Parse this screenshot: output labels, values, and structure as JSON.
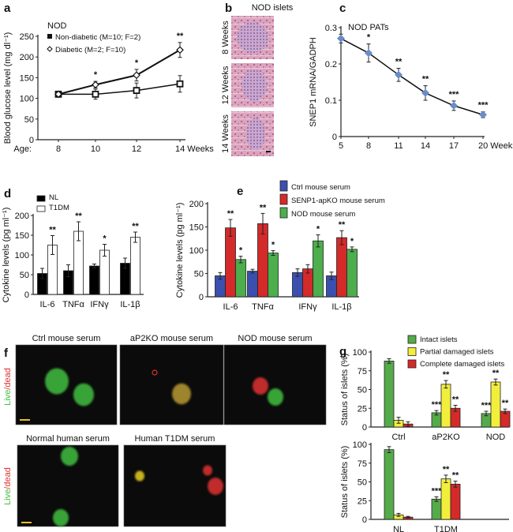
{
  "panel_labels": {
    "a": "a",
    "b": "b",
    "c": "c",
    "d": "d",
    "e": "e",
    "f": "f",
    "g": "g"
  },
  "panel_b": {
    "title": "NOD islets",
    "rows": [
      "8 Weeks",
      "12 Weeks",
      "14 Weeks"
    ]
  },
  "panel_f": {
    "titles": [
      "Ctrl mouse serum",
      "aP2KO mouse serum",
      "NOD mouse serum",
      "Normal human serum",
      "Human T1DM serum"
    ],
    "side_label_live": "Live",
    "side_label_sep": "/",
    "side_label_dead": "dead",
    "colors": {
      "live": "#3fbf3f",
      "dead": "#e03030",
      "scale_bar": "#e8c020"
    }
  },
  "chart_data": [
    {
      "id": "a",
      "type": "line",
      "legend_title": "NOD",
      "x_prefix": "Age:",
      "x": [
        8,
        10,
        12,
        14
      ],
      "tick_labels": [
        "8",
        "10",
        "12",
        "14 Weeks"
      ],
      "ylabel": "Blood glucose level (mg dl⁻¹)",
      "ylim": [
        0,
        250
      ],
      "yticks": [
        0,
        50,
        100,
        150,
        200,
        250
      ],
      "series": [
        {
          "name": "Non-diabetic (M=10; F=2)",
          "marker": "filled-square",
          "values": [
            110,
            110,
            119,
            135
          ],
          "errors": [
            0,
            12,
            18,
            20
          ]
        },
        {
          "name": "Diabetic (M=2; F=10)",
          "marker": "open-diamond",
          "values": [
            110,
            133,
            156,
            217
          ],
          "errors": [
            0,
            8,
            14,
            18
          ]
        }
      ],
      "significance": [
        "",
        "*",
        "*",
        "**"
      ]
    },
    {
      "id": "c",
      "type": "line",
      "annotation": "NOD PATs",
      "x": [
        5,
        8,
        11,
        14,
        17,
        20
      ],
      "tick_labels": [
        "5",
        "8",
        "11",
        "14",
        "17",
        "20 Weeks"
      ],
      "ylabel": "SNEP1 mRNA/GADPH",
      "ylim": [
        0,
        0.3
      ],
      "yticks": [
        0,
        0.1,
        0.2,
        0.3
      ],
      "ytick_labels": [
        "0",
        "0.1",
        "0.2",
        "0.3"
      ],
      "series": [
        {
          "marker": "blue-diamond",
          "color": "#6a8cc9",
          "values": [
            0.27,
            0.23,
            0.17,
            0.12,
            0.085,
            0.06
          ],
          "errors": [
            0.012,
            0.025,
            0.018,
            0.02,
            0.013,
            0.008
          ]
        }
      ],
      "significance": [
        "",
        "*",
        "**",
        "**",
        "***",
        "***"
      ]
    },
    {
      "id": "d",
      "type": "bar",
      "categories": [
        "IL-6",
        "TNFα",
        "IFNγ",
        "IL-1β"
      ],
      "ylabel": "Cytokine levels (pg ml⁻¹)",
      "ylim": [
        0,
        200
      ],
      "yticks": [
        0,
        50,
        100,
        150,
        200
      ],
      "series": [
        {
          "name": "NL",
          "color": "#000000",
          "values": [
            53,
            60,
            72,
            79
          ],
          "errors": [
            13,
            15,
            5,
            13
          ],
          "significance": [
            "",
            "",
            "",
            ""
          ]
        },
        {
          "name": "T1DM",
          "color": "#ffffff",
          "values": [
            125,
            160,
            112,
            145
          ],
          "errors": [
            24,
            24,
            15,
            13
          ],
          "significance": [
            "**",
            "**",
            "*",
            "**"
          ]
        }
      ]
    },
    {
      "id": "e",
      "type": "bar",
      "categories": [
        "IL-6",
        "TNFα",
        "IFNγ",
        "IL-1β"
      ],
      "ylabel": "Cytokine levels (pg ml⁻¹)",
      "ylim": [
        0,
        200
      ],
      "yticks": [
        0,
        50,
        100,
        150,
        200
      ],
      "series": [
        {
          "name": "Ctrl mouse serum",
          "color": "#3b4fae",
          "values": [
            45,
            55,
            52,
            45
          ],
          "errors": [
            7,
            4,
            8,
            8
          ],
          "significance": [
            "",
            "",
            "",
            ""
          ]
        },
        {
          "name": "SENP1-apKO mouse serum",
          "color": "#d42a2a",
          "values": [
            148,
            157,
            60,
            127
          ],
          "errors": [
            18,
            22,
            9,
            15
          ],
          "significance": [
            "**",
            "**",
            "",
            "**"
          ]
        },
        {
          "name": "NOD mouse serum",
          "color": "#4cae4c",
          "values": [
            80,
            94,
            120,
            102
          ],
          "errors": [
            7,
            5,
            13,
            5
          ],
          "significance": [
            "*",
            "*",
            "*",
            "*"
          ]
        }
      ]
    },
    {
      "id": "g-top",
      "type": "bar",
      "categories": [
        "Ctrl",
        "aP2KO",
        "NOD"
      ],
      "ylabel": "Status of islets (%)",
      "ylim": [
        0,
        100
      ],
      "yticks": [
        0,
        25,
        50,
        75,
        100
      ],
      "series": [
        {
          "name": "Intact islets",
          "color": "#55aa4a",
          "values": [
            88,
            19,
            18
          ],
          "errors": [
            3,
            3,
            3
          ],
          "significance": [
            "",
            "***",
            "***"
          ]
        },
        {
          "name": "Partial damaged islets",
          "color": "#f2ee3c",
          "values": [
            9,
            57,
            60
          ],
          "errors": [
            4,
            5,
            4
          ],
          "significance": [
            "",
            "**",
            "**"
          ]
        },
        {
          "name": "Complete damaged islets",
          "color": "#d42a2a",
          "values": [
            4,
            25,
            21
          ],
          "errors": [
            3,
            4,
            3
          ],
          "significance": [
            "",
            "**",
            "**"
          ]
        }
      ]
    },
    {
      "id": "g-bottom",
      "type": "bar",
      "categories": [
        "NL",
        "T1DM"
      ],
      "ylabel": "Status of islets (%)",
      "ylim": [
        0,
        100
      ],
      "yticks": [
        0,
        25,
        50,
        75,
        100
      ],
      "series": [
        {
          "color": "#55aa4a",
          "values": [
            93,
            27
          ],
          "errors": [
            4,
            3
          ],
          "significance": [
            "",
            "***"
          ]
        },
        {
          "color": "#f2ee3c",
          "values": [
            6,
            54
          ],
          "errors": [
            2,
            5
          ],
          "significance": [
            "",
            "**"
          ]
        },
        {
          "color": "#d42a2a",
          "values": [
            3,
            47
          ],
          "errors": [
            1,
            4
          ],
          "significance": [
            "",
            "**"
          ]
        }
      ]
    }
  ]
}
